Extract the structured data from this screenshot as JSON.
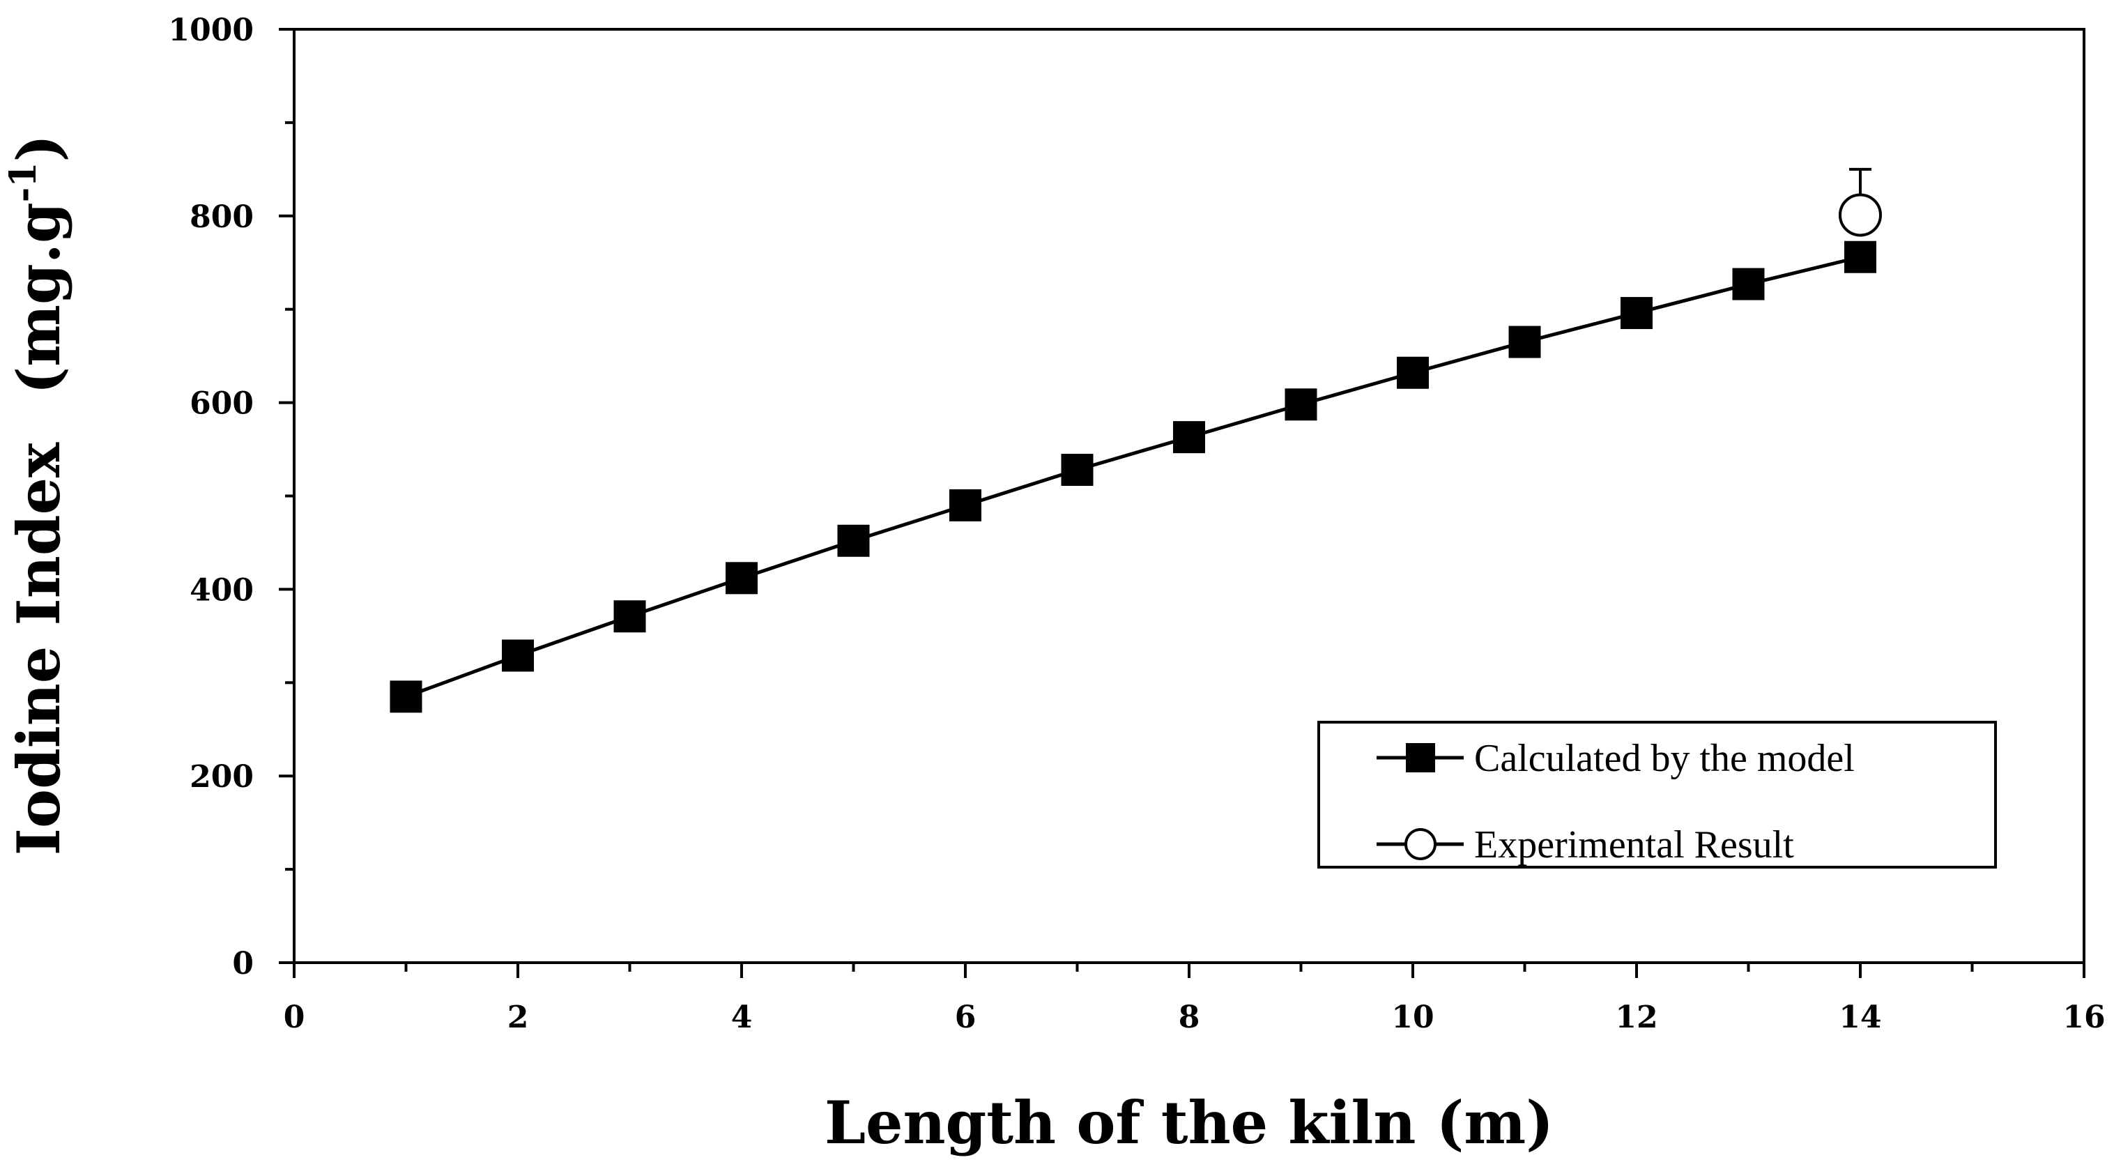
{
  "chart_data": {
    "type": "line",
    "xlabel": "Length of the kiln (m)",
    "ylabel_main": "Iodine Index",
    "ylabel_unit": "(mg.g",
    "ylabel_exp": "-1",
    "ylabel_close": ")",
    "xlim": [
      0,
      16
    ],
    "ylim": [
      0,
      1000
    ],
    "xticks": [
      0,
      2,
      4,
      6,
      8,
      10,
      12,
      14,
      16
    ],
    "yticks": [
      0,
      200,
      400,
      600,
      800,
      1000
    ],
    "series": [
      {
        "name": "Calculated by the model",
        "marker": "filled-square",
        "x": [
          1,
          2,
          3,
          4,
          5,
          6,
          7,
          8,
          9,
          10,
          11,
          12,
          13,
          14
        ],
        "y": [
          285,
          329,
          371,
          412,
          452,
          490,
          528,
          563,
          598,
          632,
          665,
          696,
          727,
          756
        ]
      },
      {
        "name": "Experimental Result",
        "marker": "open-circle",
        "x": [
          14
        ],
        "y": [
          801
        ],
        "error_up": [
          49
        ]
      }
    ],
    "legend_position": "bottom-right",
    "colors": {
      "line": "#000000",
      "marker_fill": "#000000",
      "open_fill": "#ffffff"
    }
  }
}
